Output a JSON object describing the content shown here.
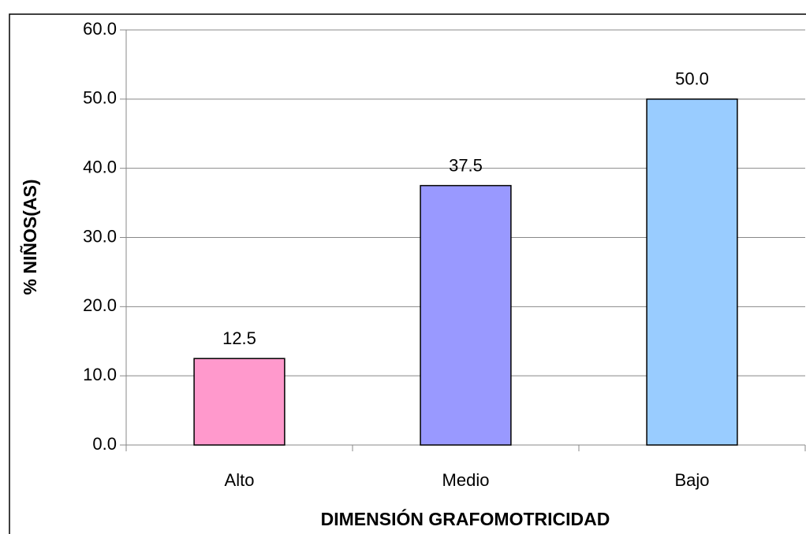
{
  "chart_data": {
    "type": "bar",
    "categories": [
      "Alto",
      "Medio",
      "Bajo"
    ],
    "values": [
      12.5,
      37.5,
      50
    ],
    "value_labels": [
      "12.5",
      "37.5",
      "50.0"
    ],
    "colors": [
      "#ff99cc",
      "#9999ff",
      "#99ccff"
    ],
    "x_label": "DIMENSIÓN GRAFOMOTRICIDAD",
    "y_label": "% NIÑOS(AS)",
    "ylim": [
      0,
      60
    ],
    "yticks": [
      {
        "value": 0,
        "label": "0.0"
      },
      {
        "value": 10,
        "label": "10.0"
      },
      {
        "value": 20,
        "label": "20.0"
      },
      {
        "value": 30,
        "label": "30.0"
      },
      {
        "value": 40,
        "label": "40.0"
      },
      {
        "value": 50,
        "label": "50.0"
      },
      {
        "value": 60,
        "label": "60.0"
      }
    ],
    "grid": true
  }
}
